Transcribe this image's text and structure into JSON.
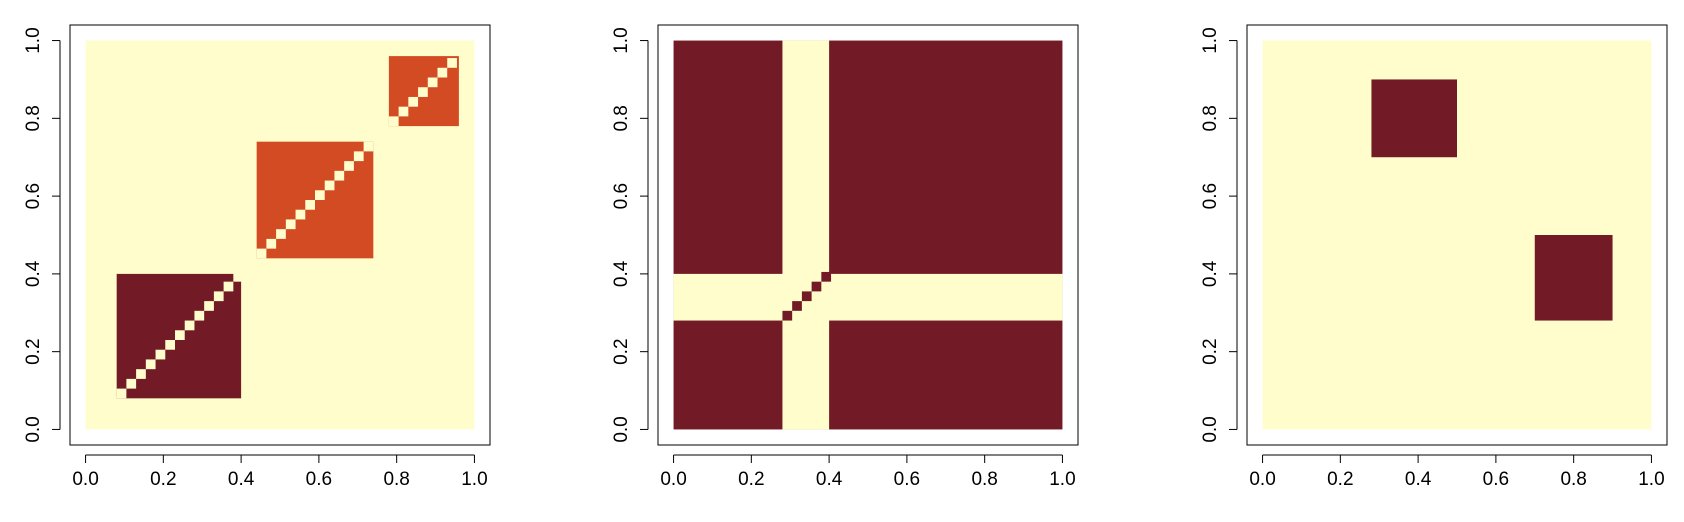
{
  "colors": {
    "background": "#ffffff",
    "heat_low": "#fffdcb",
    "heat_mid": "#d24b22",
    "heat_high": "#721b26",
    "axis": "#000000"
  },
  "chart_data": [
    {
      "type": "heatmap",
      "title": "",
      "xlabel": "",
      "ylabel": "",
      "xlim": [
        0,
        1
      ],
      "ylim": [
        0,
        1
      ],
      "x_ticks": [
        "0.0",
        "0.2",
        "0.4",
        "0.6",
        "0.8",
        "1.0"
      ],
      "y_ticks": [
        "0.0",
        "0.2",
        "0.4",
        "0.6",
        "0.8",
        "1.0"
      ],
      "grid": false,
      "background_level": "low",
      "cells": [
        {
          "x0": 0.08,
          "x1": 0.4,
          "y0": 0.08,
          "y1": 0.4,
          "level": "high",
          "diagonal": "low",
          "grid": 40
        },
        {
          "x0": 0.44,
          "x1": 0.74,
          "y0": 0.44,
          "y1": 0.74,
          "level": "mid",
          "diagonal": "low",
          "grid": 40
        },
        {
          "x0": 0.78,
          "x1": 0.96,
          "y0": 0.78,
          "y1": 0.96,
          "level": "mid",
          "diagonal": "low",
          "grid": 40
        }
      ]
    },
    {
      "type": "heatmap",
      "title": "",
      "xlabel": "",
      "ylabel": "",
      "xlim": [
        0,
        1
      ],
      "ylim": [
        0,
        1
      ],
      "x_ticks": [
        "0.0",
        "0.2",
        "0.4",
        "0.6",
        "0.8",
        "1.0"
      ],
      "y_ticks": [
        "0.0",
        "0.2",
        "0.4",
        "0.6",
        "0.8",
        "1.0"
      ],
      "grid": false,
      "background_level": "high",
      "cells": [
        {
          "x0": 0.28,
          "x1": 0.4,
          "y0": 0.0,
          "y1": 1.0,
          "level": "low"
        },
        {
          "x0": 0.0,
          "x1": 1.0,
          "y0": 0.28,
          "y1": 0.4,
          "level": "low"
        },
        {
          "x0": 0.28,
          "x1": 0.4,
          "y0": 0.28,
          "y1": 0.4,
          "level": "low",
          "diagonal": "high",
          "grid": 40
        }
      ]
    },
    {
      "type": "heatmap",
      "title": "",
      "xlabel": "",
      "ylabel": "",
      "xlim": [
        0,
        1
      ],
      "ylim": [
        0,
        1
      ],
      "x_ticks": [
        "0.0",
        "0.2",
        "0.4",
        "0.6",
        "0.8",
        "1.0"
      ],
      "y_ticks": [
        "0.0",
        "0.2",
        "0.4",
        "0.6",
        "0.8",
        "1.0"
      ],
      "grid": false,
      "background_level": "low",
      "cells": [
        {
          "x0": 0.28,
          "x1": 0.5,
          "y0": 0.7,
          "y1": 0.9,
          "level": "high"
        },
        {
          "x0": 0.7,
          "x1": 0.9,
          "y0": 0.28,
          "y1": 0.5,
          "level": "high"
        }
      ]
    }
  ]
}
